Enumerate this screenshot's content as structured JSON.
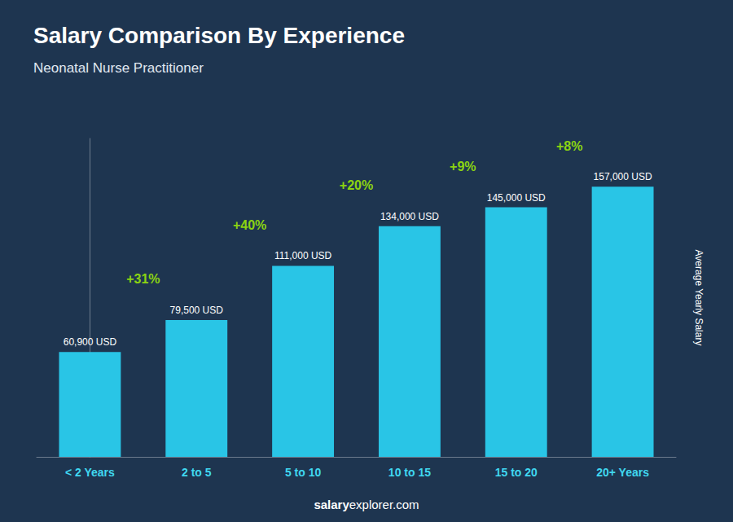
{
  "chart_data": {
    "type": "bar",
    "title": "Salary Comparison By Experience",
    "subtitle": "Neonatal Nurse Practitioner",
    "ylabel": "Average Yearly Salary",
    "categories": [
      "< 2 Years",
      "2 to 5",
      "5 to 10",
      "10 to 15",
      "15 to 20",
      "20+ Years"
    ],
    "values": [
      60900,
      79500,
      111000,
      134000,
      145000,
      157000
    ],
    "value_labels": [
      "60,900 USD",
      "79,500 USD",
      "111,000 USD",
      "134,000 USD",
      "145,000 USD",
      "157,000 USD"
    ],
    "data_labels": true,
    "annotations": [
      "+31%",
      "+40%",
      "+20%",
      "+9%",
      "+8%"
    ],
    "watermark": [
      "salary",
      "explorer.com"
    ],
    "color": "#29c5e6",
    "ylim": [
      0,
      185000
    ],
    "grid": false,
    "tick_labels": "x"
  }
}
